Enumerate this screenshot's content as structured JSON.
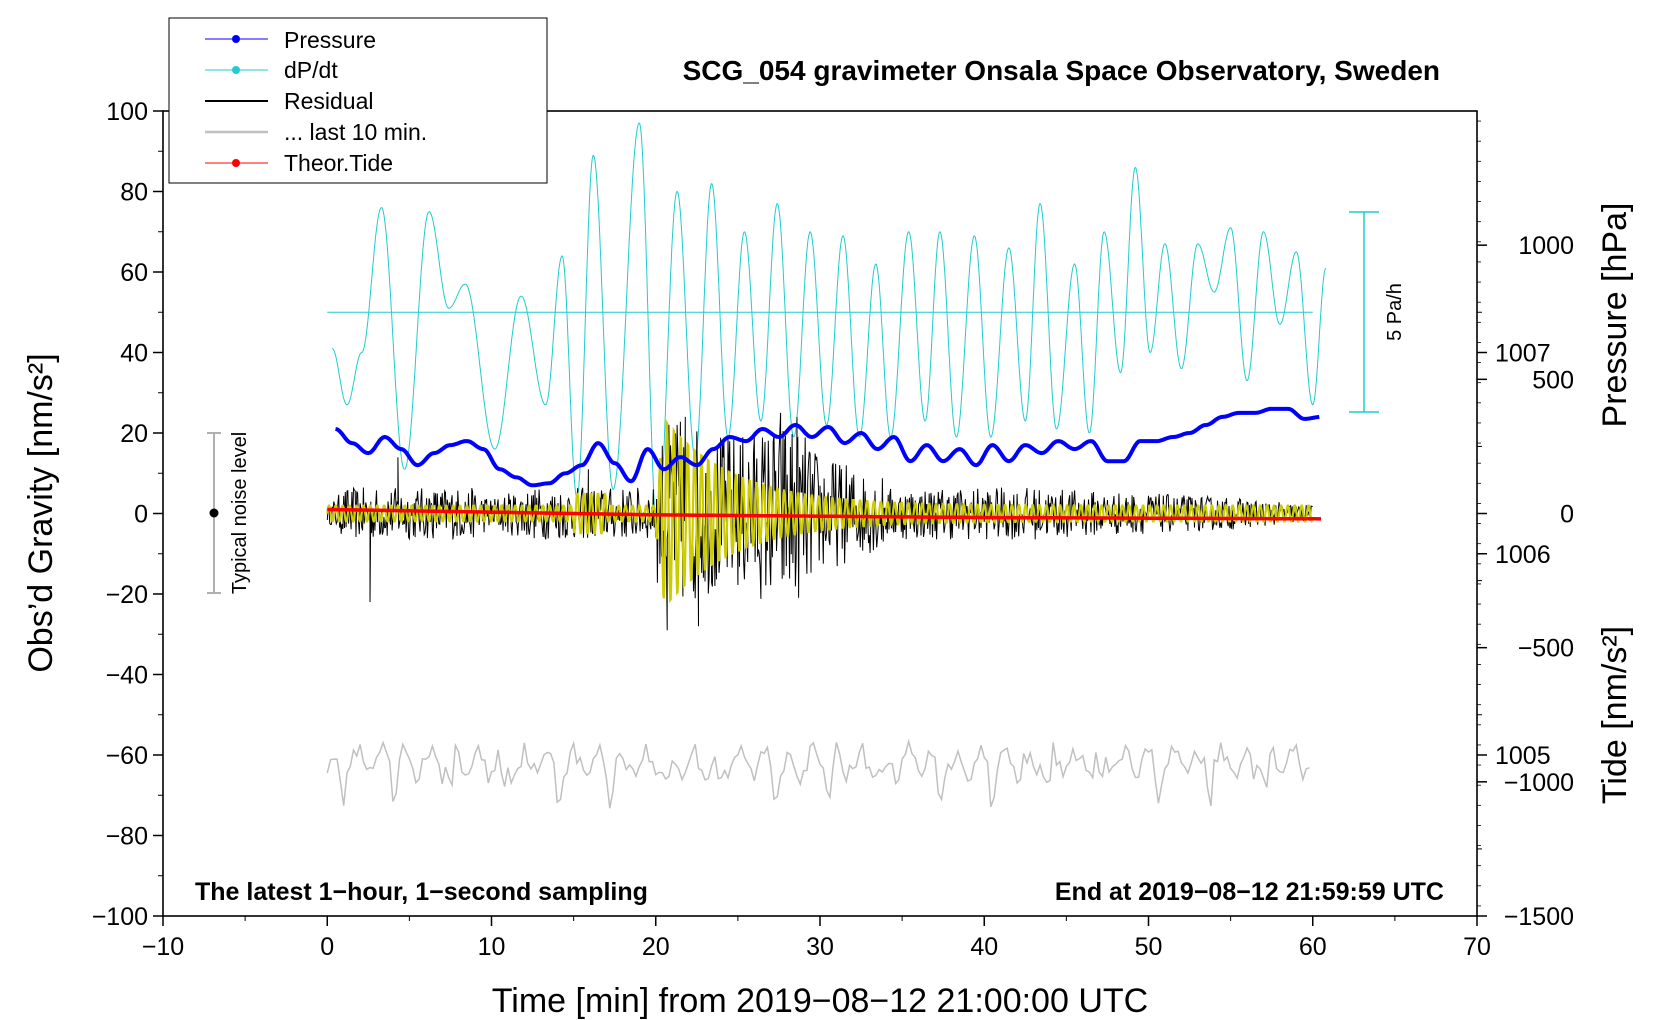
{
  "chart_data": {
    "type": "line",
    "title": "SCG_054 gravimeter Onsala Space Observatory, Sweden",
    "xlabel": "Time [min] from 2019−08−12 21:00:00 UTC",
    "ylabel_left": "Obs’d Gravity [nm/s²]",
    "ylabel_right_top": "Pressure [hPa]",
    "ylabel_right_bottom": "Tide [nm/s²]",
    "xlim": [
      -10,
      70
    ],
    "ylim_left": [
      -100,
      100
    ],
    "pressure_ylim": [
      1004.2,
      1008.2
    ],
    "tide_ylim": [
      -1500,
      1500
    ],
    "x_ticks": [
      "−10",
      "0",
      "10",
      "20",
      "30",
      "40",
      "50",
      "60",
      "70"
    ],
    "x_tick_values": [
      -10,
      0,
      10,
      20,
      30,
      40,
      50,
      60,
      70
    ],
    "y_ticks_left": [
      "100",
      "80",
      "60",
      "40",
      "20",
      "0",
      "−20",
      "−40",
      "−60",
      "−80",
      "−100"
    ],
    "y_tick_values_left": [
      100,
      80,
      60,
      40,
      20,
      0,
      -20,
      -40,
      -60,
      -80,
      -100
    ],
    "pressure_ticks": [
      "1007",
      "1006",
      "1005"
    ],
    "pressure_tick_values": [
      1007,
      1006,
      1005
    ],
    "tide_ticks": [
      "1000",
      "500",
      "0",
      "−500",
      "−1000",
      "−1500"
    ],
    "tide_tick_values": [
      1000,
      500,
      0,
      -500,
      -1000,
      -1500
    ],
    "legend": {
      "position": "top-left",
      "entries": [
        {
          "label": "Pressure",
          "color": "#0000ff",
          "marker": true
        },
        {
          "label": "dP/dt",
          "color": "#22cccc",
          "marker": true
        },
        {
          "label": "Residual",
          "color": "#000000",
          "marker": false
        },
        {
          "label": "... last 10 min.",
          "color": "#c0c0c0",
          "marker": false
        },
        {
          "label": "Theor.Tide",
          "color": "#ff0000",
          "marker": true
        }
      ]
    },
    "annotations": {
      "bottom_left": "The latest 1−hour, 1−second sampling",
      "bottom_right": "End at 2019−08−12 21:59:59 UTC",
      "noise_label": "Typical noise level",
      "noise_range": [
        -20,
        20
      ],
      "dpdt_scale_label": "5 Pa/h",
      "dpdt_baseline": 50
    },
    "series": [
      {
        "name": "Pressure",
        "color": "#0000ff",
        "axis": "pressure",
        "x": [
          0.5,
          1.5,
          2.5,
          3.5,
          4.5,
          5.5,
          6.5,
          7.5,
          8.5,
          9.5,
          10.5,
          11.5,
          12.5,
          13.5,
          14.5,
          15.5,
          16.5,
          17.5,
          18.5,
          19.5,
          20.5,
          21.5,
          22.5,
          23.5,
          24.5,
          25.5,
          26.5,
          27.5,
          28.5,
          29.5,
          30.5,
          31.5,
          32.5,
          33.5,
          34.5,
          35.5,
          36.5,
          37.5,
          38.5,
          39.5,
          40.5,
          41.5,
          42.5,
          43.5,
          44.5,
          45.5,
          46.5,
          47.5,
          48.5,
          49.5,
          50.5,
          51.5,
          52.5,
          53.5,
          54.5,
          55.5,
          56.5,
          57.5,
          58.5,
          59.5,
          60.5
        ],
        "values": [
          1006.62,
          1006.55,
          1006.5,
          1006.58,
          1006.52,
          1006.44,
          1006.5,
          1006.54,
          1006.56,
          1006.52,
          1006.42,
          1006.38,
          1006.34,
          1006.35,
          1006.4,
          1006.44,
          1006.55,
          1006.45,
          1006.36,
          1006.52,
          1006.42,
          1006.48,
          1006.44,
          1006.52,
          1006.58,
          1006.56,
          1006.62,
          1006.58,
          1006.64,
          1006.58,
          1006.63,
          1006.55,
          1006.6,
          1006.52,
          1006.58,
          1006.46,
          1006.54,
          1006.46,
          1006.52,
          1006.44,
          1006.54,
          1006.46,
          1006.54,
          1006.5,
          1006.56,
          1006.52,
          1006.56,
          1006.46,
          1006.46,
          1006.56,
          1006.56,
          1006.58,
          1006.6,
          1006.64,
          1006.68,
          1006.7,
          1006.7,
          1006.72,
          1006.72,
          1006.67,
          1006.68
        ]
      },
      {
        "name": "dP/dt",
        "color": "#22cccc",
        "axis": "left",
        "x": [
          0.3,
          1.2,
          2.1,
          3.3,
          4.7,
          6.2,
          7.4,
          8.4,
          10.2,
          11.8,
          13.3,
          14.3,
          15.2,
          16.2,
          17.4,
          19.0,
          20.1,
          21.3,
          22.4,
          23.4,
          24.4,
          25.4,
          26.4,
          27.4,
          28.4,
          29.4,
          30.4,
          31.4,
          32.4,
          33.4,
          34.3,
          35.4,
          36.4,
          37.3,
          38.3,
          39.4,
          40.4,
          41.5,
          42.5,
          43.4,
          44.4,
          45.5,
          46.4,
          47.3,
          48.3,
          49.2,
          50.1,
          51.0,
          52.0,
          53.0,
          54.0,
          55.0,
          56.0,
          57.0,
          58.0,
          59.0,
          60.0,
          60.8
        ],
        "values": [
          41,
          27,
          40,
          76,
          11,
          75,
          51,
          57,
          16,
          54,
          27,
          64,
          4,
          89,
          6,
          97,
          -5,
          80,
          14,
          82,
          19,
          70,
          23,
          77,
          19,
          70,
          22,
          69,
          19,
          62,
          19,
          70,
          23,
          70,
          19,
          69,
          19,
          66,
          23,
          77,
          21,
          62,
          20,
          70,
          35,
          86,
          40,
          67,
          36,
          67,
          55,
          71,
          33,
          70,
          47,
          65,
          27,
          61
        ]
      },
      {
        "name": "Residual",
        "color": "#000000",
        "axis": "left",
        "description": "1-second residual gravity; quiet noise ±5 nm/s² with a large oscillation burst between 20 and 33 min",
        "x": [
          0,
          2,
          3,
          4.5,
          10,
          15,
          20,
          21,
          22,
          23,
          25,
          27,
          28,
          30,
          33,
          37,
          45,
          55,
          60
        ],
        "values": [
          2,
          10,
          -22,
          15,
          4,
          10,
          17,
          24,
          24,
          20,
          20,
          22,
          25,
          15,
          10,
          8,
          6,
          4,
          2
        ]
      },
      {
        "name": "... last 10 min.",
        "color": "#c0c0c0",
        "axis": "left",
        "baseline": -62,
        "x": [
          0,
          60
        ],
        "values": [
          -65,
          -61
        ]
      },
      {
        "name": "Theor.Tide",
        "color": "#ff0000",
        "axis": "tide",
        "x": [
          0,
          20,
          40,
          60.5
        ],
        "values": [
          15,
          -5,
          -15,
          -20
        ]
      }
    ]
  }
}
